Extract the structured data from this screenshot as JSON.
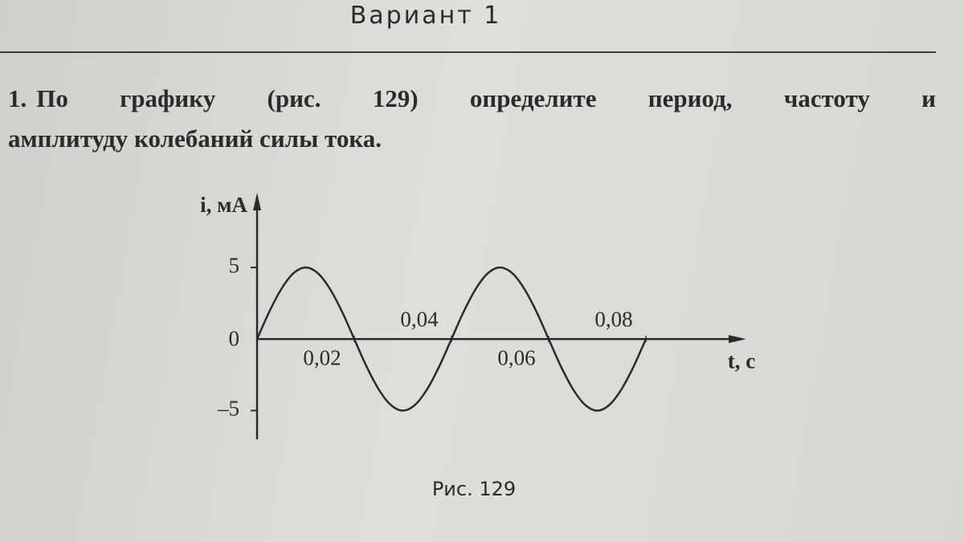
{
  "header": {
    "title": "Вариант 1"
  },
  "problem": {
    "number": "1.",
    "lines": [
      "По графику (рис. 129) определите период, частоту и",
      "амплитуду колебаний силы тока."
    ]
  },
  "chart_data": {
    "type": "line",
    "caption": "Рис. 129",
    "y_label": "i, мА",
    "x_label": "t, с",
    "origin_label": "0",
    "color": "#2a2a2a",
    "x": [
      0,
      0.0025,
      0.005,
      0.0075,
      0.01,
      0.0125,
      0.015,
      0.0175,
      0.02,
      0.0225,
      0.025,
      0.0275,
      0.03,
      0.0325,
      0.035,
      0.0375,
      0.04,
      0.0425,
      0.045,
      0.0475,
      0.05,
      0.0525,
      0.055,
      0.0575,
      0.06,
      0.0625,
      0.065,
      0.0675,
      0.07,
      0.0725,
      0.075,
      0.0775,
      0.08
    ],
    "values": [
      0,
      1.9,
      3.5,
      4.6,
      5,
      4.6,
      3.5,
      1.9,
      0,
      -1.9,
      -3.5,
      -4.6,
      -5,
      -4.6,
      -3.5,
      -1.9,
      0,
      1.9,
      3.5,
      4.6,
      5,
      4.6,
      3.5,
      1.9,
      0,
      -1.9,
      -3.5,
      -4.6,
      -5,
      -4.6,
      -3.5,
      -1.9,
      0
    ],
    "xlim": [
      0,
      0.1
    ],
    "ylim": [
      -7,
      10
    ],
    "xticks": [
      {
        "value": 0.02,
        "label": "0,02"
      },
      {
        "value": 0.04,
        "label": "0,04"
      },
      {
        "value": 0.06,
        "label": "0,06"
      },
      {
        "value": 0.08,
        "label": "0,08"
      }
    ],
    "yticks": [
      5,
      {
        "value": -5,
        "label": "–5"
      }
    ]
  }
}
